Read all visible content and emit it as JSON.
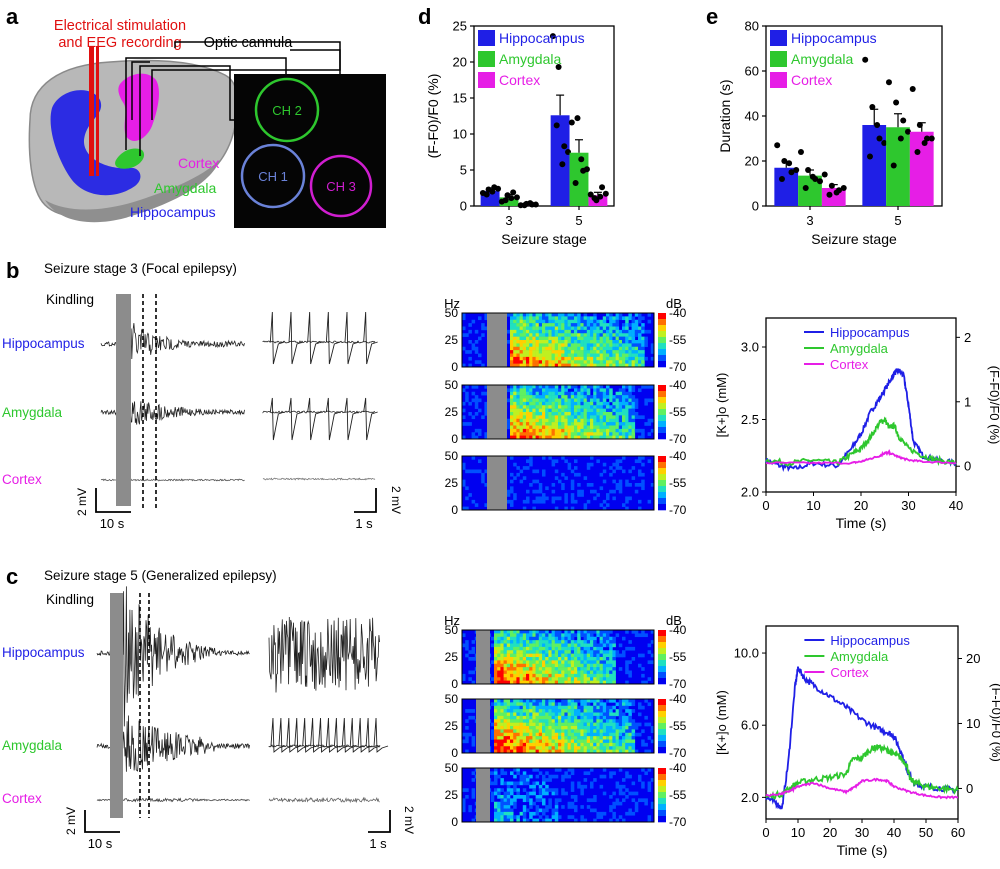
{
  "colors": {
    "hippocampus": "#1f1fe6",
    "amygdala": "#2ec72e",
    "cortex": "#e61ee6",
    "stim_red": "#e01010",
    "cannula": "#000000",
    "blanking": "#8c8c8c"
  },
  "panel_labels": [
    "a",
    "b",
    "c",
    "d",
    "e"
  ],
  "panel_a": {
    "stim_label_line1": "Electrical stimulation",
    "stim_label_line2": "and EEG recording",
    "cannula_label": "Optic cannula",
    "regions": [
      "Cortex",
      "Amygdala",
      "Hippocampus"
    ],
    "channels": [
      "CH 2",
      "CH 1",
      "CH 3"
    ]
  },
  "panel_b": {
    "title": "Seizure stage 3 (Focal epilepsy)",
    "kindling": "Kindling",
    "rows": [
      "Hippocampus",
      "Amygdala",
      "Cortex"
    ],
    "scale_v_left": "2 mV",
    "scale_t_left": "10 s",
    "scale_t_right": "1 s",
    "scale_v_right": "2 mV"
  },
  "panel_c": {
    "title": "Seizure stage 5 (Generalized epilepsy)",
    "kindling": "Kindling",
    "rows": [
      "Hippocampus",
      "Amygdala",
      "Cortex"
    ],
    "scale_v_left": "2 mV",
    "scale_t_left": "10 s",
    "scale_t_right": "1 s",
    "scale_v_right": "2 mV"
  },
  "spectrogram": {
    "hz_label": "Hz",
    "db_label": "dB",
    "y_ticks": [
      "50",
      "25",
      "0"
    ],
    "db_ticks": [
      "-40",
      "-55",
      "-70"
    ]
  },
  "chart_data": [
    {
      "id": "d",
      "type": "bar",
      "categories": [
        "3",
        "5"
      ],
      "xlabel": "Seizure stage",
      "ylabel": "(F-F0)/F0 (%)",
      "ylim": [
        0,
        25
      ],
      "yticks": [
        0,
        5,
        10,
        15,
        20,
        25
      ],
      "legend_position": "top-left",
      "series": [
        {
          "name": "Hippocampus",
          "values": [
            2.1,
            12.6
          ],
          "errors": [
            0.4,
            2.8
          ],
          "points": [
            [
              1.8,
              2.3,
              2.6,
              1.6,
              2.0,
              2.4
            ],
            [
              23.6,
              19.3,
              8.3,
              11.2,
              5.8,
              7.5
            ]
          ]
        },
        {
          "name": "Amygdala",
          "values": [
            1.2,
            7.4
          ],
          "errors": [
            0.4,
            1.8
          ],
          "points": [
            [
              0.6,
              1.5,
              1.9,
              0.8,
              1.1,
              1.2
            ],
            [
              11.6,
              12.2,
              4.9,
              3.2,
              6.5,
              5.1
            ]
          ]
        },
        {
          "name": "Cortex",
          "values": [
            0.2,
            1.5
          ],
          "errors": [
            0.1,
            0.4
          ],
          "points": [
            [
              0.1,
              0.3,
              0.2,
              0.1,
              0.4,
              0.2
            ],
            [
              1.6,
              0.8,
              2.6,
              1.1,
              1.3,
              1.7
            ]
          ]
        }
      ]
    },
    {
      "id": "e",
      "type": "bar",
      "categories": [
        "3",
        "5"
      ],
      "xlabel": "Seizure stage",
      "ylabel": "Duration (s)",
      "ylim": [
        0,
        80
      ],
      "yticks": [
        0,
        20,
        40,
        60,
        80
      ],
      "legend_position": "top-left",
      "series": [
        {
          "name": "Hippocampus",
          "values": [
            17,
            36
          ],
          "errors": [
            2.5,
            7
          ],
          "points": [
            [
              27,
              20,
              15,
              12,
              19,
              16
            ],
            [
              65,
              44,
              30,
              22,
              36,
              28
            ]
          ]
        },
        {
          "name": "Amygdala",
          "values": [
            13.5,
            35
          ],
          "errors": [
            2.5,
            6
          ],
          "points": [
            [
              24,
              16,
              12,
              8,
              13,
              11
            ],
            [
              55,
              46,
              38,
              18,
              30,
              33
            ]
          ]
        },
        {
          "name": "Cortex",
          "values": [
            8,
            33
          ],
          "errors": [
            1.5,
            4
          ],
          "points": [
            [
              14,
              9,
              7,
              5,
              6,
              8
            ],
            [
              52,
              36,
              30,
              24,
              28,
              30
            ]
          ]
        }
      ]
    },
    {
      "id": "b-right",
      "type": "line",
      "xlabel": "Time (s)",
      "ylabel_left": "[K+]o (mM)",
      "ylabel_right": "(F-F0)/F0 (%)",
      "xlim": [
        0,
        40
      ],
      "xticks": [
        0,
        10,
        20,
        30,
        40
      ],
      "ylim_left": [
        2.0,
        3.2
      ],
      "yticks_left": [
        "2.0",
        "2.5",
        "3.0"
      ],
      "yticks_left_values": [
        2.0,
        2.5,
        3.0
      ],
      "ylim_right": [
        -0.4,
        2.3
      ],
      "yticks_right": [
        "0",
        "1",
        "2"
      ],
      "yticks_right_values": [
        0,
        1,
        2
      ],
      "legend_position": "top-right",
      "series": [
        {
          "name": "Hippocampus",
          "axis": "left",
          "x": [
            0,
            3,
            6,
            10,
            15,
            18,
            20,
            22,
            24,
            26,
            27,
            28,
            29,
            30,
            31,
            33,
            36,
            40
          ],
          "y": [
            2.22,
            2.18,
            2.16,
            2.2,
            2.18,
            2.3,
            2.4,
            2.55,
            2.65,
            2.76,
            2.82,
            2.84,
            2.8,
            2.6,
            2.35,
            2.25,
            2.22,
            2.2
          ]
        },
        {
          "name": "Amygdala",
          "axis": "left",
          "x": [
            0,
            5,
            10,
            15,
            18,
            20,
            22,
            24,
            25,
            26,
            27,
            28,
            30,
            33,
            36,
            40
          ],
          "y": [
            2.22,
            2.2,
            2.22,
            2.2,
            2.26,
            2.3,
            2.38,
            2.48,
            2.5,
            2.44,
            2.46,
            2.38,
            2.3,
            2.25,
            2.22,
            2.2
          ]
        },
        {
          "name": "Cortex",
          "axis": "left",
          "x": [
            0,
            10,
            18,
            20,
            22,
            24,
            25,
            26,
            28,
            30,
            33,
            40
          ],
          "y": [
            2.2,
            2.2,
            2.2,
            2.21,
            2.23,
            2.25,
            2.27,
            2.27,
            2.24,
            2.22,
            2.21,
            2.2
          ]
        }
      ]
    },
    {
      "id": "c-right",
      "type": "line",
      "xlabel": "Time (s)",
      "ylabel_left": "[K+]o (mM)",
      "ylabel_right": "(F-F0)/F0 (%)",
      "xlim": [
        0,
        60
      ],
      "xticks": [
        0,
        10,
        20,
        30,
        40,
        50,
        60
      ],
      "ylim_left": [
        0.8,
        11.5
      ],
      "yticks_left": [
        "2.0",
        "6.0",
        "10.0"
      ],
      "yticks_left_values": [
        2.0,
        6.0,
        10.0
      ],
      "ylim_right": [
        -4.7,
        25
      ],
      "yticks_right": [
        "0",
        "10",
        "20"
      ],
      "yticks_right_values": [
        0,
        10,
        20
      ],
      "legend_position": "top-right",
      "series": [
        {
          "name": "Hippocampus",
          "axis": "left",
          "x": [
            0,
            3,
            5,
            7,
            9,
            10,
            12,
            15,
            20,
            25,
            30,
            35,
            38,
            40,
            42,
            44,
            45,
            46,
            48,
            50,
            55,
            60
          ],
          "y": [
            2.0,
            1.7,
            1.4,
            4.0,
            8.0,
            9.2,
            8.6,
            8.2,
            7.6,
            7.0,
            6.3,
            5.8,
            5.6,
            5.4,
            4.6,
            3.6,
            3.2,
            2.8,
            2.7,
            2.6,
            2.5,
            2.4
          ]
        },
        {
          "name": "Amygdala",
          "axis": "left",
          "x": [
            0,
            5,
            8,
            10,
            15,
            20,
            25,
            27,
            30,
            33,
            35,
            38,
            40,
            42,
            44,
            45,
            47,
            50,
            55,
            60
          ],
          "y": [
            2.0,
            2.2,
            2.6,
            2.8,
            3.0,
            3.1,
            3.3,
            4.1,
            4.2,
            4.7,
            4.8,
            4.6,
            4.4,
            4.2,
            3.8,
            3.0,
            2.8,
            2.6,
            2.5,
            2.4
          ]
        },
        {
          "name": "Cortex",
          "axis": "left",
          "x": [
            0,
            5,
            8,
            10,
            15,
            20,
            25,
            28,
            30,
            35,
            38,
            40,
            45,
            50,
            55,
            60
          ],
          "y": [
            2.1,
            2.2,
            2.4,
            2.6,
            2.8,
            2.5,
            2.3,
            2.6,
            2.9,
            3.0,
            2.9,
            2.6,
            2.3,
            2.1,
            2.0,
            2.0
          ]
        }
      ]
    }
  ]
}
